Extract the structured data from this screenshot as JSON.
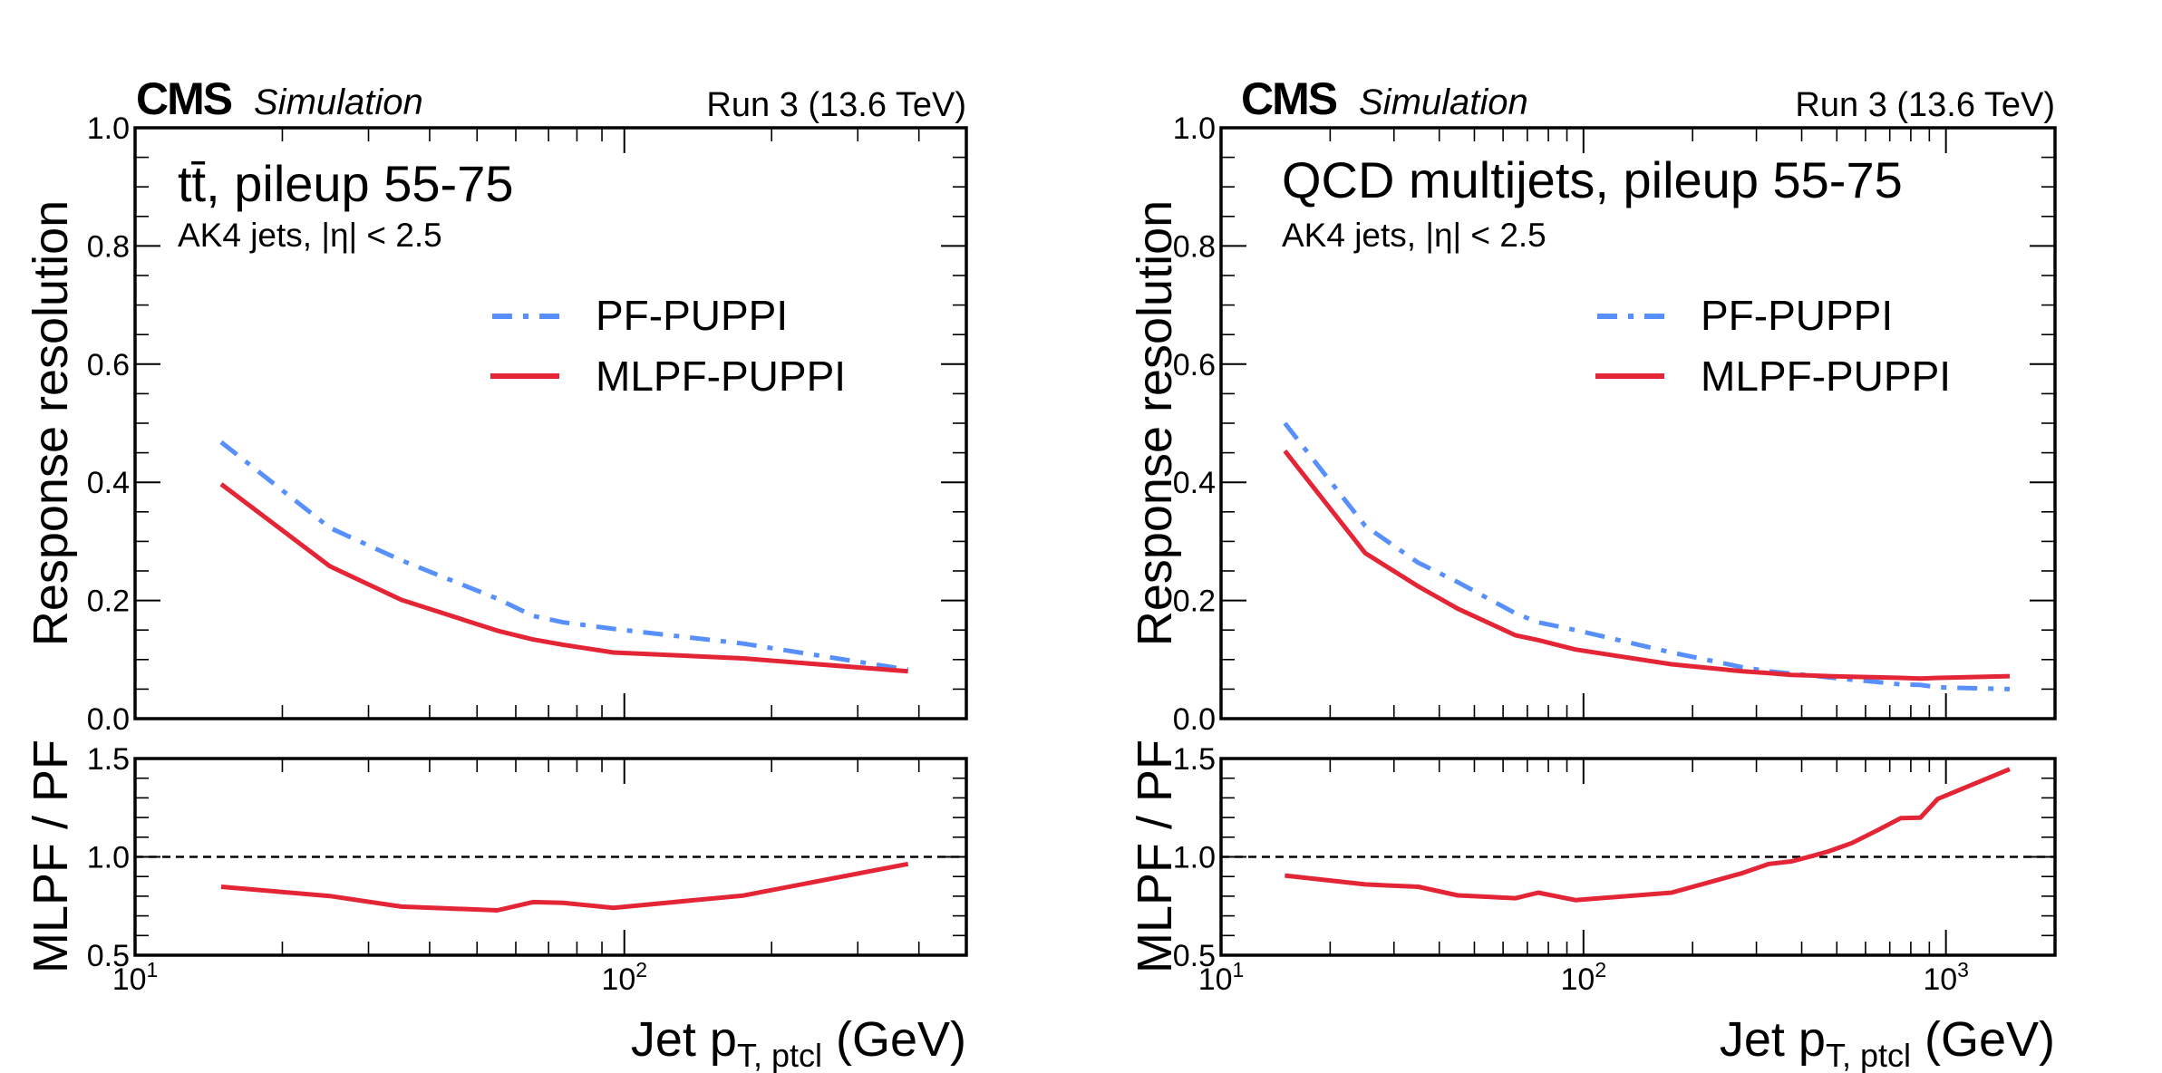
{
  "colors": {
    "pf": "#5790fc",
    "mlpf": "#e42536"
  },
  "chart_data": [
    {
      "type": "line",
      "panel": "left",
      "experiment": "CMS",
      "label": "Simulation",
      "lumi": "Run 3 (13.6 TeV)",
      "title": "tt̄, pileup 55-75",
      "subtitle": "AK4 jets, |η| < 2.5",
      "xlabel_main": "Jet p",
      "xlabel_sub": "T, ptcl",
      "xlabel_unit": " (GeV)",
      "ylabel": "Response resolution",
      "ratio_ylabel": "MLPF / PF",
      "xscale": "log",
      "xlim": [
        10,
        500
      ],
      "ylim": [
        0.0,
        1.0
      ],
      "ratio_ylim": [
        0.5,
        1.5
      ],
      "legend_position": "upper-right",
      "x_ticks": [
        {
          "base": "10",
          "exp": "1",
          "value": 10
        },
        {
          "base": "10",
          "exp": "2",
          "value": 100
        }
      ],
      "y_ticks": [
        "0.0",
        "0.2",
        "0.4",
        "0.6",
        "0.8",
        "1.0"
      ],
      "ratio_y_ticks": [
        "0.5",
        "1.0",
        "1.5"
      ],
      "x": [
        15,
        25,
        35,
        55,
        65,
        75,
        95,
        175,
        380
      ],
      "series": [
        {
          "name": "PF-PUPPI",
          "style": "dashdot",
          "values": [
            0.468,
            0.323,
            0.268,
            0.203,
            0.174,
            0.163,
            0.152,
            0.127,
            0.083
          ]
        },
        {
          "name": "MLPF-PUPPI",
          "style": "solid",
          "values": [
            0.397,
            0.258,
            0.201,
            0.149,
            0.134,
            0.125,
            0.112,
            0.102,
            0.08
          ]
        }
      ],
      "ratio": {
        "name": "MLPF / PF",
        "values": [
          0.848,
          0.801,
          0.747,
          0.728,
          0.77,
          0.766,
          0.741,
          0.803,
          0.964
        ]
      }
    },
    {
      "type": "line",
      "panel": "right",
      "experiment": "CMS",
      "label": "Simulation",
      "lumi": "Run 3 (13.6 TeV)",
      "title": "QCD multijets, pileup 55-75",
      "subtitle": "AK4 jets, |η| < 2.5",
      "xlabel_main": "Jet p",
      "xlabel_sub": "T, ptcl",
      "xlabel_unit": " (GeV)",
      "ylabel": "Response resolution",
      "ratio_ylabel": "MLPF / PF",
      "xscale": "log",
      "xlim": [
        10,
        2000
      ],
      "ylim": [
        0.0,
        1.0
      ],
      "ratio_ylim": [
        0.5,
        1.5
      ],
      "legend_position": "upper-right",
      "x_ticks": [
        {
          "base": "10",
          "exp": "1",
          "value": 10
        },
        {
          "base": "10",
          "exp": "2",
          "value": 100
        },
        {
          "base": "10",
          "exp": "3",
          "value": 1000
        }
      ],
      "y_ticks": [
        "0.0",
        "0.2",
        "0.4",
        "0.6",
        "0.8",
        "1.0"
      ],
      "ratio_y_ticks": [
        "0.5",
        "1.0",
        "1.5"
      ],
      "x": [
        15,
        25,
        35,
        45,
        65,
        75,
        95,
        175,
        275,
        325,
        375,
        425,
        475,
        550,
        650,
        750,
        850,
        950,
        1500
      ],
      "series": [
        {
          "name": "PF-PUPPI",
          "style": "dashdot",
          "values": [
            0.5,
            0.326,
            0.264,
            0.231,
            0.178,
            0.163,
            0.15,
            0.112,
            0.087,
            0.08,
            0.076,
            0.073,
            0.07,
            0.066,
            0.062,
            0.058,
            0.057,
            0.053,
            0.05
          ]
        },
        {
          "name": "MLPF-PUPPI",
          "style": "solid",
          "values": [
            0.453,
            0.28,
            0.224,
            0.186,
            0.141,
            0.133,
            0.117,
            0.092,
            0.08,
            0.077,
            0.074,
            0.073,
            0.072,
            0.071,
            0.07,
            0.069,
            0.068,
            0.069,
            0.072
          ]
        }
      ],
      "ratio": {
        "name": "MLPF / PF",
        "values": [
          0.905,
          0.86,
          0.848,
          0.804,
          0.79,
          0.818,
          0.78,
          0.818,
          0.918,
          0.964,
          0.977,
          1.003,
          1.028,
          1.07,
          1.137,
          1.197,
          1.199,
          1.295,
          1.446
        ]
      }
    }
  ]
}
